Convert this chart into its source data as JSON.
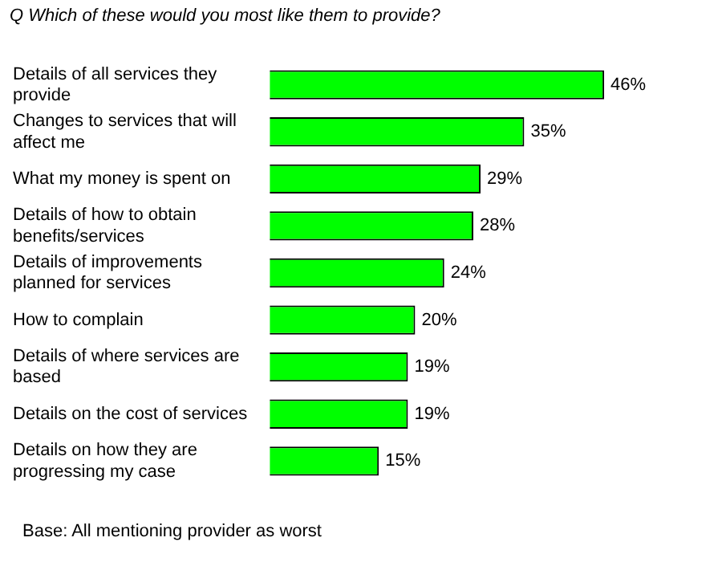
{
  "chart_data": {
    "type": "bar",
    "orientation": "horizontal",
    "title": "Q Which of these would you most like them to provide?",
    "categories": [
      "Details of all services they provide",
      "Changes to services that will affect me",
      "What my money is spent on",
      "Details of how to obtain benefits/services",
      "Details of improvements planned for services",
      "How to complain",
      "Details of where services are based",
      "Details on the cost of services",
      "Details on how they are progressing my case"
    ],
    "values": [
      46,
      35,
      29,
      28,
      24,
      20,
      19,
      19,
      15
    ],
    "value_labels": [
      "46%",
      "35%",
      "29%",
      "28%",
      "24%",
      "20%",
      "19%",
      "19%",
      "15%"
    ],
    "color": "#00ff00",
    "annotations": [
      "Base: All mentioning provider as worst"
    ]
  }
}
